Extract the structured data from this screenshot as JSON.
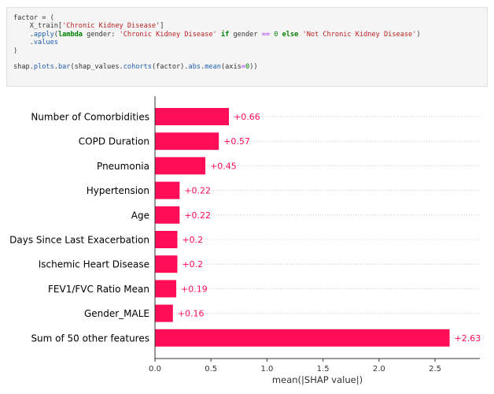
{
  "code_cell": {
    "lines": [
      [
        {
          "t": "factor = (",
          "c": "plain"
        }
      ],
      [
        {
          "t": "    X_train[",
          "c": "plain"
        },
        {
          "t": "'Chronic Kidney Disease'",
          "c": "str"
        },
        {
          "t": "]",
          "c": "plain"
        }
      ],
      [
        {
          "t": "    .",
          "c": "plain"
        },
        {
          "t": "apply",
          "c": "attr"
        },
        {
          "t": "(",
          "c": "plain"
        },
        {
          "t": "lambda",
          "c": "kw"
        },
        {
          "t": " gender: ",
          "c": "plain"
        },
        {
          "t": "'Chronic Kidney Disease'",
          "c": "str"
        },
        {
          "t": " ",
          "c": "plain"
        },
        {
          "t": "if",
          "c": "kw"
        },
        {
          "t": " gender ",
          "c": "plain"
        },
        {
          "t": "==",
          "c": "op"
        },
        {
          "t": " ",
          "c": "plain"
        },
        {
          "t": "0",
          "c": "num"
        },
        {
          "t": " ",
          "c": "plain"
        },
        {
          "t": "else",
          "c": "kw"
        },
        {
          "t": " ",
          "c": "plain"
        },
        {
          "t": "'Not Chronic Kidney Disease'",
          "c": "str"
        },
        {
          "t": ")",
          "c": "plain"
        }
      ],
      [
        {
          "t": "    .",
          "c": "plain"
        },
        {
          "t": "values",
          "c": "attr"
        }
      ],
      [
        {
          "t": ")",
          "c": "plain"
        }
      ],
      [
        {
          "t": "",
          "c": "plain"
        }
      ],
      [
        {
          "t": "shap.",
          "c": "plain"
        },
        {
          "t": "plots",
          "c": "attr"
        },
        {
          "t": ".",
          "c": "plain"
        },
        {
          "t": "bar",
          "c": "attr"
        },
        {
          "t": "(shap_values.",
          "c": "plain"
        },
        {
          "t": "cohorts",
          "c": "attr"
        },
        {
          "t": "(factor).",
          "c": "plain"
        },
        {
          "t": "abs",
          "c": "attr"
        },
        {
          "t": ".",
          "c": "plain"
        },
        {
          "t": "mean",
          "c": "attr"
        },
        {
          "t": "(axis",
          "c": "plain"
        },
        {
          "t": "=",
          "c": "op"
        },
        {
          "t": "0",
          "c": "num"
        },
        {
          "t": "))",
          "c": "plain"
        }
      ]
    ]
  },
  "chart_data": {
    "type": "bar",
    "orientation": "horizontal",
    "categories": [
      "Number of Comorbidities",
      "COPD Duration",
      "Pneumonia",
      "Hypertension",
      "Age",
      "Days Since Last Exacerbation",
      "Ischemic Heart Disease",
      "FEV1/FVC Ratio Mean",
      "Gender_MALE",
      "Sum of 50 other features"
    ],
    "values": [
      0.66,
      0.57,
      0.45,
      0.22,
      0.22,
      0.2,
      0.2,
      0.19,
      0.16,
      2.63
    ],
    "value_labels": [
      "+0.66",
      "+0.57",
      "+0.45",
      "+0.22",
      "+0.22",
      "+0.2",
      "+0.2",
      "+0.19",
      "+0.16",
      "+2.63"
    ],
    "xlabel": "mean(|SHAP value|)",
    "xlim": [
      0,
      2.9
    ],
    "xticks": [
      0.0,
      0.5,
      1.0,
      1.5,
      2.0,
      2.5
    ],
    "xtick_labels": [
      "0.0",
      "0.5",
      "1.0",
      "1.5",
      "2.0",
      "2.5"
    ],
    "grid": "dotted row guides",
    "colors": {
      "bar": "#ff0d57",
      "value_label": "#ff0d57",
      "guide": "#cccccc",
      "axis": "#333333"
    }
  }
}
